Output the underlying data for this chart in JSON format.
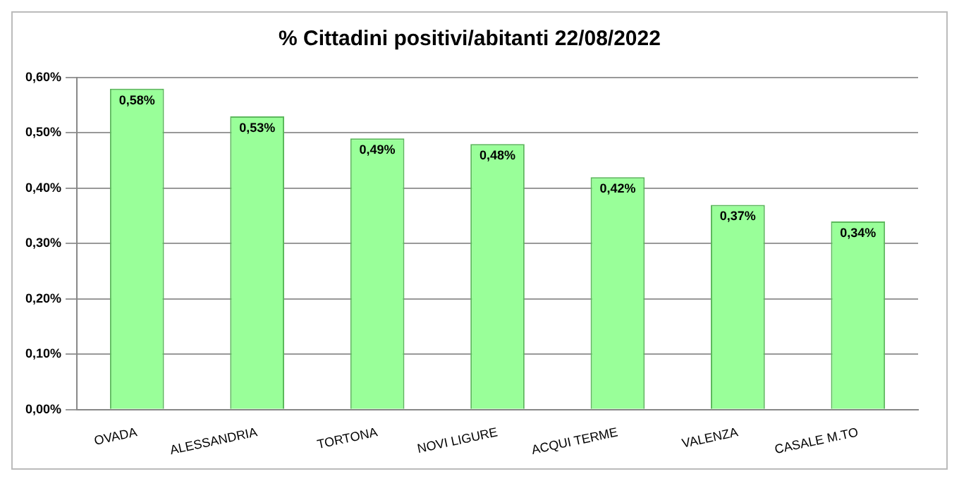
{
  "chart_data": {
    "type": "bar",
    "title": "% Cittadini positivi/abitanti 22/08/2022",
    "categories": [
      "OVADA",
      "ALESSANDRIA",
      "TORTONA",
      "NOVI LIGURE",
      "ACQUI TERME",
      "VALENZA",
      "CASALE M.TO"
    ],
    "values": [
      0.58,
      0.53,
      0.49,
      0.48,
      0.42,
      0.37,
      0.34
    ],
    "value_labels": [
      "0,58%",
      "0,53%",
      "0,49%",
      "0,48%",
      "0,42%",
      "0,37%",
      "0,34%"
    ],
    "color": "#99ff99",
    "ylim": [
      0,
      0.6
    ],
    "yticks": [
      {
        "value": 0,
        "label": "0,00%"
      },
      {
        "value": 0.1,
        "label": "0,10%"
      },
      {
        "value": 0.2,
        "label": "0,20%"
      },
      {
        "value": 0.3,
        "label": "0,30%"
      },
      {
        "value": 0.4,
        "label": "0,40%"
      },
      {
        "value": 0.5,
        "label": "0,50%"
      },
      {
        "value": 0.6,
        "label": "0,60%"
      }
    ],
    "grid": "y",
    "legend": false
  }
}
